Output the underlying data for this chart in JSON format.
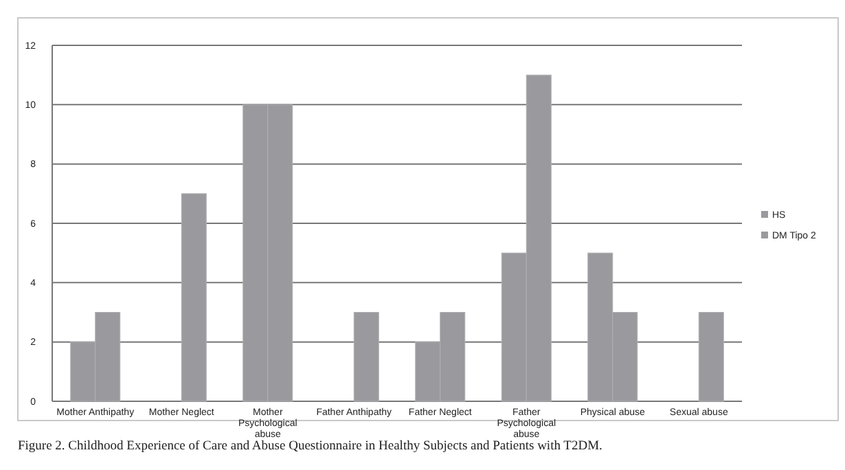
{
  "chart_data": {
    "type": "bar",
    "categories": [
      "Mother Anthipathy",
      "Mother Neglect",
      "Mother Psychological abuse",
      "Father Anthipathy",
      "Father Neglect",
      "Father Psychological abuse",
      "Physical abuse",
      "Sexual abuse"
    ],
    "series": [
      {
        "name": "HS",
        "color": "#9a9a9e",
        "values": [
          2,
          0,
          10,
          0,
          2,
          5,
          5,
          0
        ]
      },
      {
        "name": "DM Tipo 2",
        "color": "#9a9a9e",
        "values": [
          3,
          7,
          10,
          3,
          3,
          11,
          3,
          3
        ]
      }
    ],
    "ylim": [
      0,
      12
    ],
    "yticks": [
      0,
      2,
      4,
      6,
      8,
      10,
      12
    ],
    "grid": "y",
    "legend": "right",
    "annotations": [
      "Figure 2. Childhood Experience of Care and Abuse Questionnaire in Healthy Subjects and Patients with T2DM."
    ]
  }
}
